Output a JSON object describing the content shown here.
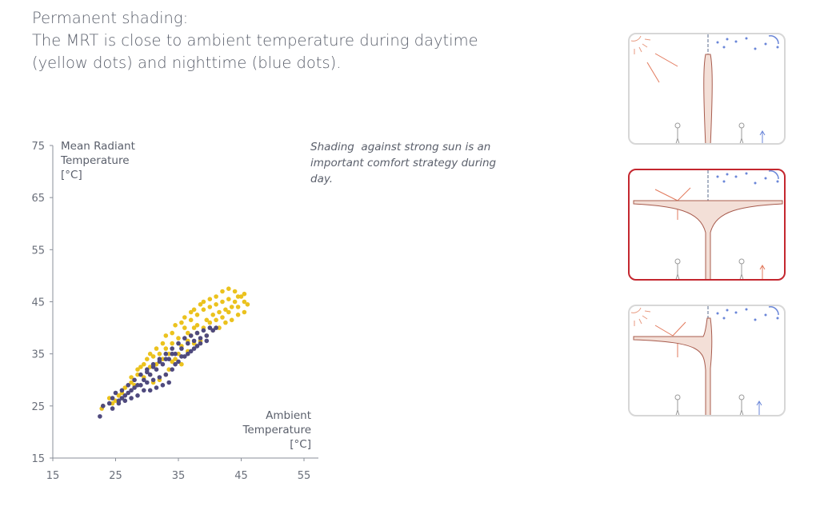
{
  "heading": {
    "lines": [
      "Permanent shading:",
      "The MRT is close to ambient temperature during daytime",
      "(yellow dots) and nighttime (blue dots)."
    ]
  },
  "note": "Shading  against strong sun is an\nimportant comfort strategy during\nday.",
  "colors": {
    "day": "#ebc21e",
    "night": "#4f4a7e",
    "highlight": "#c4272f",
    "panel_border": "#d7d7d7"
  },
  "panels": [
    {
      "id": "pole",
      "active": false
    },
    {
      "id": "umbrella",
      "active": true
    },
    {
      "id": "cantilever",
      "active": false
    }
  ],
  "chart_data": {
    "type": "scatter",
    "title": "",
    "ylabel_lines": [
      "Mean Radiant",
      "Temperature",
      "[°C]"
    ],
    "xlabel_lines": [
      "Ambient",
      "Temperature",
      "[°C]"
    ],
    "xlim": [
      15,
      55
    ],
    "ylim": [
      15,
      75
    ],
    "xticks": [
      15,
      25,
      35,
      45,
      55
    ],
    "yticks": [
      15,
      25,
      35,
      45,
      55,
      65,
      75
    ],
    "grid": false,
    "series": [
      {
        "name": "",
        "color": "#ebc21e",
        "points": [
          [
            23.0,
            25.0
          ],
          [
            24.0,
            26.5
          ],
          [
            25.5,
            27.0
          ],
          [
            26.5,
            28.5
          ],
          [
            27.5,
            29.5
          ],
          [
            28.5,
            31.0
          ],
          [
            29.0,
            32.5
          ],
          [
            30.0,
            34.0
          ],
          [
            30.5,
            35.0
          ],
          [
            31.5,
            36.0
          ],
          [
            32.5,
            37.0
          ],
          [
            33.0,
            38.5
          ],
          [
            34.0,
            39.0
          ],
          [
            34.5,
            40.5
          ],
          [
            35.5,
            41.0
          ],
          [
            36.0,
            42.0
          ],
          [
            37.0,
            43.0
          ],
          [
            37.5,
            43.5
          ],
          [
            38.5,
            44.5
          ],
          [
            39.0,
            45.0
          ],
          [
            40.0,
            45.5
          ],
          [
            41.0,
            46.0
          ],
          [
            42.0,
            47.0
          ],
          [
            43.0,
            47.5
          ],
          [
            44.0,
            47.0
          ],
          [
            45.0,
            46.0
          ],
          [
            45.5,
            45.0
          ],
          [
            46.0,
            44.5
          ],
          [
            44.5,
            44.0
          ],
          [
            43.0,
            43.0
          ],
          [
            42.0,
            42.0
          ],
          [
            41.0,
            41.5
          ],
          [
            40.0,
            41.0
          ],
          [
            39.0,
            40.0
          ],
          [
            38.0,
            39.0
          ],
          [
            37.0,
            38.5
          ],
          [
            36.5,
            37.5
          ],
          [
            35.5,
            36.5
          ],
          [
            35.0,
            35.0
          ],
          [
            34.0,
            33.5
          ],
          [
            33.5,
            32.0
          ],
          [
            33.0,
            31.0
          ],
          [
            32.0,
            30.0
          ],
          [
            31.0,
            29.5
          ],
          [
            34.5,
            34.0
          ],
          [
            35.5,
            33.0
          ],
          [
            36.5,
            35.5
          ],
          [
            37.5,
            37.0
          ],
          [
            38.5,
            37.5
          ],
          [
            39.5,
            38.5
          ],
          [
            40.5,
            39.5
          ],
          [
            41.5,
            40.0
          ],
          [
            42.5,
            41.0
          ],
          [
            43.5,
            41.5
          ],
          [
            44.5,
            42.5
          ],
          [
            45.5,
            43.0
          ],
          [
            36.0,
            40.0
          ],
          [
            37.0,
            41.5
          ],
          [
            38.0,
            42.5
          ],
          [
            39.0,
            43.5
          ],
          [
            40.0,
            44.0
          ],
          [
            41.0,
            44.5
          ],
          [
            42.0,
            45.0
          ],
          [
            43.0,
            45.5
          ],
          [
            44.0,
            45.0
          ],
          [
            35.0,
            38.0
          ],
          [
            34.0,
            37.0
          ],
          [
            33.0,
            36.0
          ],
          [
            32.0,
            35.0
          ],
          [
            31.0,
            34.5
          ],
          [
            29.5,
            33.0
          ],
          [
            28.5,
            32.0
          ],
          [
            27.5,
            30.5
          ],
          [
            38.0,
            40.5
          ],
          [
            39.5,
            41.5
          ],
          [
            41.5,
            43.0
          ],
          [
            42.5,
            43.5
          ],
          [
            43.5,
            44.0
          ],
          [
            44.5,
            46.0
          ],
          [
            45.5,
            46.5
          ],
          [
            40.5,
            42.5
          ],
          [
            36.5,
            39.0
          ],
          [
            37.5,
            40.0
          ],
          [
            30.5,
            32.5
          ],
          [
            31.5,
            33.0
          ],
          [
            32.5,
            34.0
          ],
          [
            33.5,
            35.0
          ],
          [
            29.5,
            30.5
          ],
          [
            30.5,
            31.0
          ],
          [
            28.0,
            29.0
          ],
          [
            26.0,
            27.5
          ],
          [
            25.0,
            26.0
          ],
          [
            24.5,
            25.5
          ],
          [
            22.8,
            24.5
          ]
        ]
      },
      {
        "name": "",
        "color": "#4f4a7e",
        "points": [
          [
            22.5,
            23.0
          ],
          [
            23.0,
            25.0
          ],
          [
            24.0,
            25.5
          ],
          [
            24.5,
            26.5
          ],
          [
            25.0,
            27.5
          ],
          [
            25.5,
            26.0
          ],
          [
            26.0,
            28.0
          ],
          [
            26.5,
            27.0
          ],
          [
            27.0,
            29.0
          ],
          [
            27.5,
            28.0
          ],
          [
            28.0,
            30.0
          ],
          [
            28.5,
            29.0
          ],
          [
            29.0,
            31.0
          ],
          [
            29.5,
            30.0
          ],
          [
            30.0,
            32.0
          ],
          [
            30.5,
            31.0
          ],
          [
            31.0,
            33.0
          ],
          [
            31.5,
            32.0
          ],
          [
            32.0,
            34.0
          ],
          [
            32.5,
            33.0
          ],
          [
            33.0,
            35.0
          ],
          [
            33.5,
            34.0
          ],
          [
            34.0,
            36.0
          ],
          [
            34.5,
            35.0
          ],
          [
            35.0,
            37.0
          ],
          [
            35.5,
            36.0
          ],
          [
            36.0,
            38.0
          ],
          [
            36.5,
            37.0
          ],
          [
            37.0,
            38.5
          ],
          [
            37.5,
            37.5
          ],
          [
            38.0,
            39.0
          ],
          [
            38.5,
            38.0
          ],
          [
            39.0,
            39.5
          ],
          [
            39.5,
            38.5
          ],
          [
            40.0,
            40.0
          ],
          [
            40.5,
            39.5
          ],
          [
            41.0,
            40.0
          ],
          [
            26.0,
            26.5
          ],
          [
            27.0,
            27.5
          ],
          [
            28.0,
            28.5
          ],
          [
            29.0,
            29.0
          ],
          [
            30.0,
            29.5
          ],
          [
            31.0,
            30.0
          ],
          [
            32.0,
            30.5
          ],
          [
            33.0,
            31.0
          ],
          [
            34.0,
            32.0
          ],
          [
            35.0,
            33.5
          ],
          [
            36.0,
            34.5
          ],
          [
            37.0,
            35.5
          ],
          [
            38.0,
            36.5
          ],
          [
            33.5,
            29.5
          ],
          [
            32.5,
            29.0
          ],
          [
            31.5,
            28.5
          ],
          [
            30.5,
            28.0
          ],
          [
            29.5,
            28.0
          ],
          [
            28.5,
            27.0
          ],
          [
            27.5,
            26.5
          ],
          [
            26.5,
            26.0
          ],
          [
            25.5,
            25.5
          ],
          [
            24.5,
            24.5
          ],
          [
            34.5,
            33.0
          ],
          [
            35.5,
            34.5
          ],
          [
            36.5,
            35.0
          ],
          [
            37.5,
            36.0
          ],
          [
            38.5,
            37.0
          ],
          [
            39.5,
            37.5
          ],
          [
            30.0,
            31.5
          ],
          [
            31.0,
            32.5
          ],
          [
            32.0,
            33.5
          ],
          [
            33.0,
            34.0
          ],
          [
            34.0,
            35.0
          ]
        ]
      }
    ]
  }
}
